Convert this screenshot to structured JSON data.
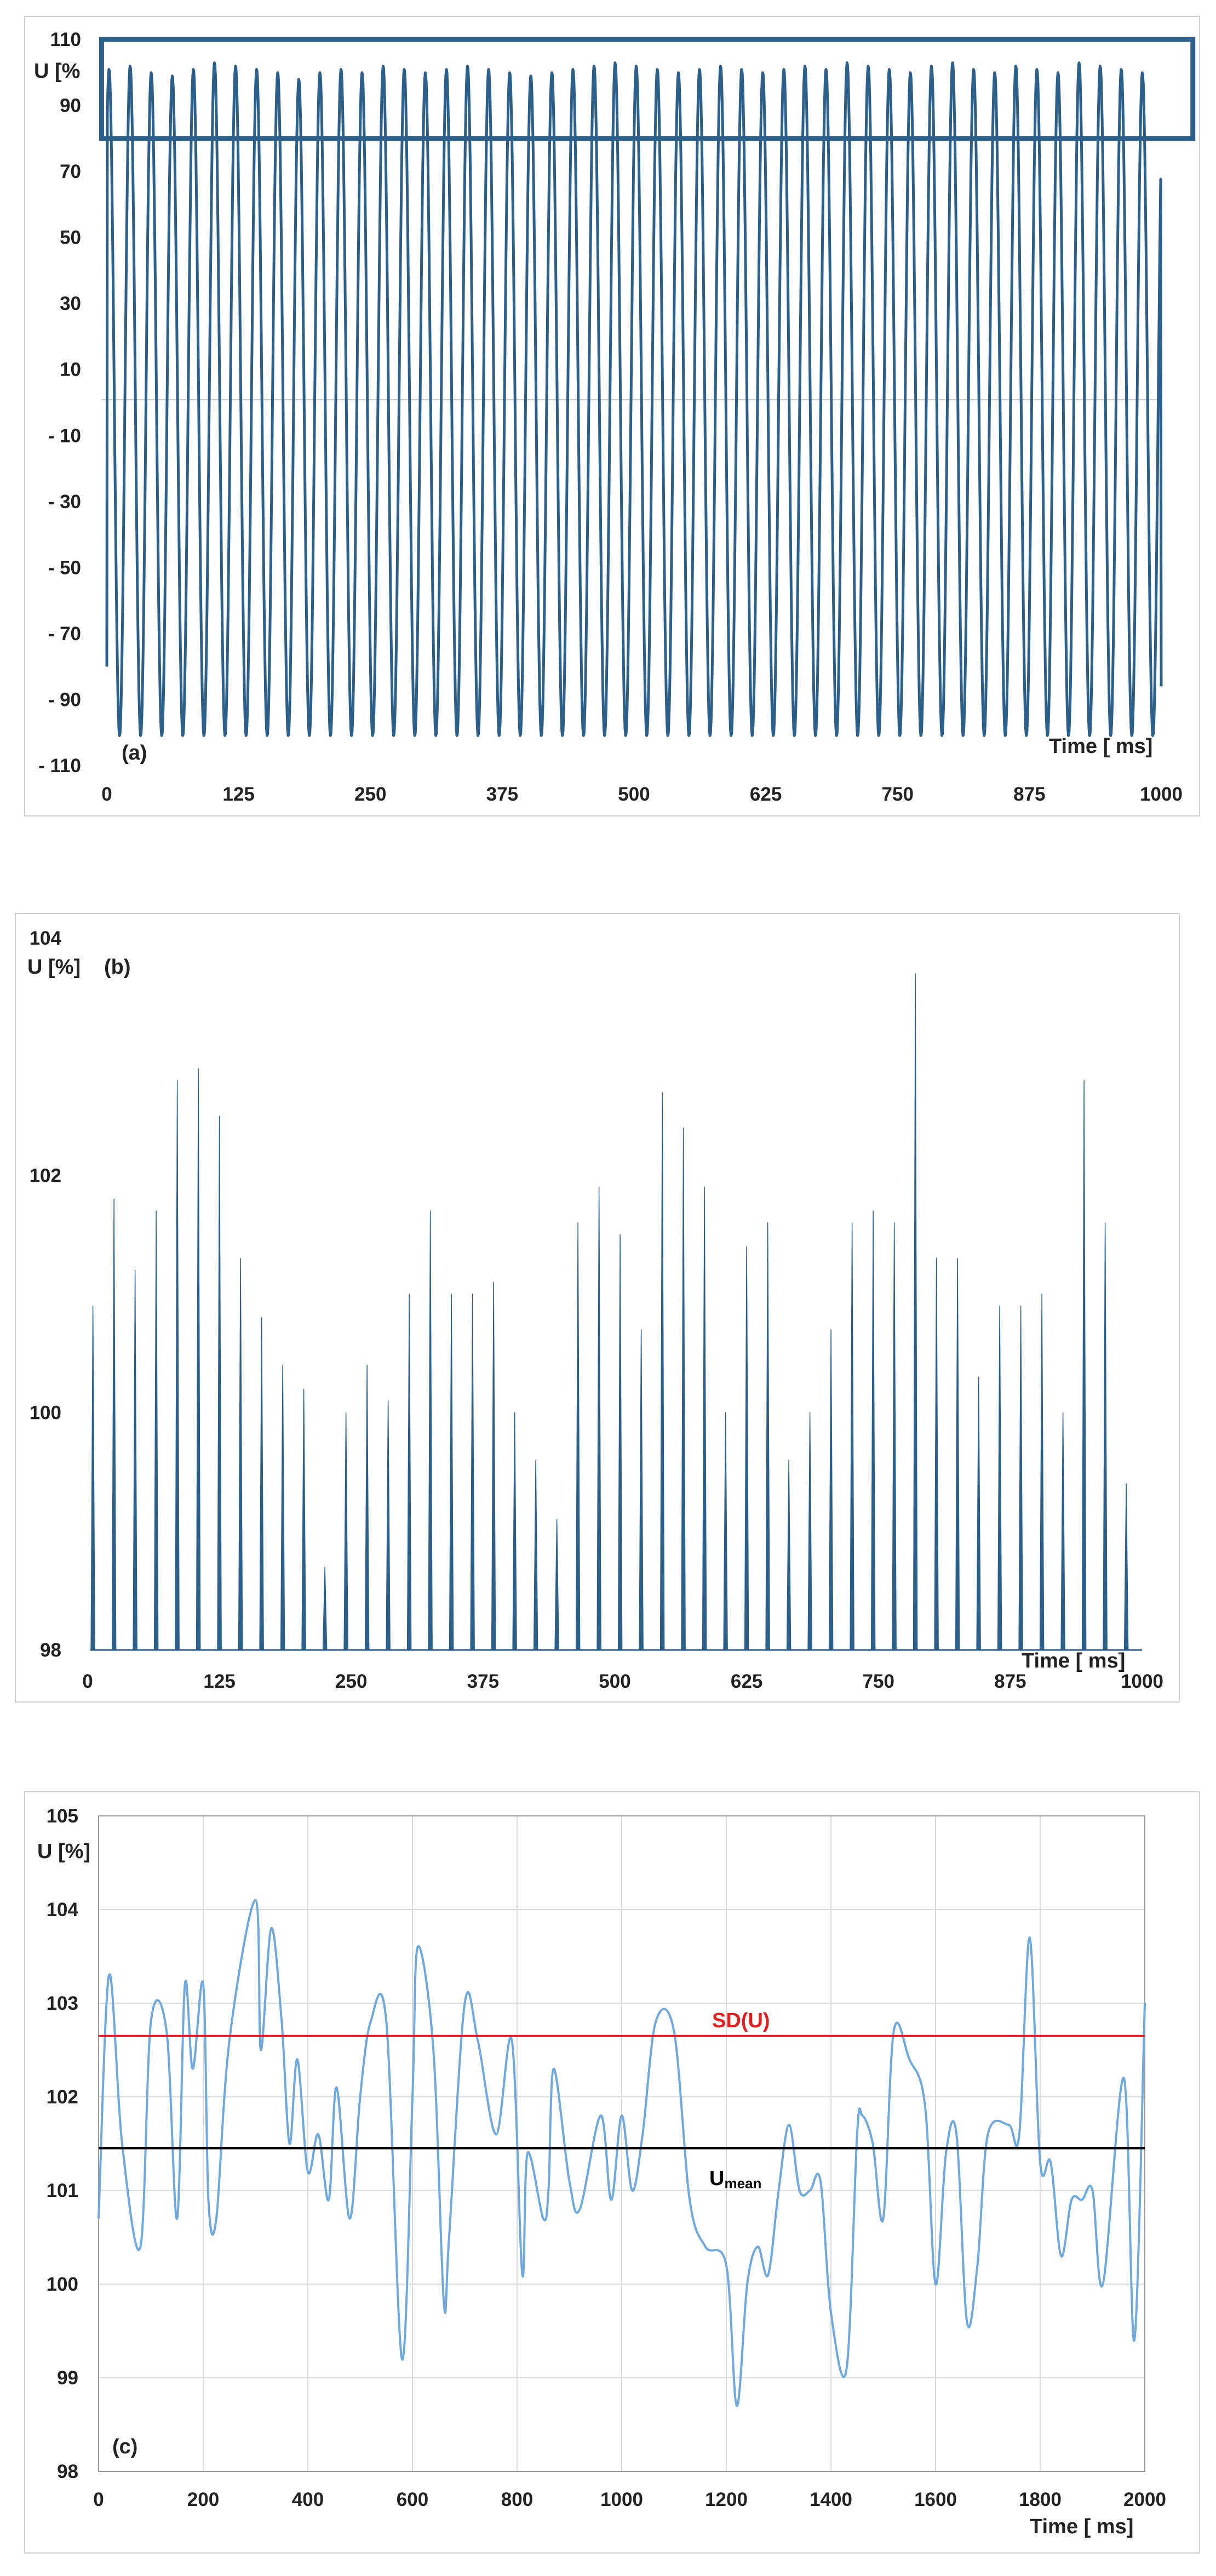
{
  "colors": {
    "signal": "#2c5f8a",
    "smooth": "#6fa8dc",
    "sd_line": "#e02020",
    "mean_line": "#000000",
    "grid": "#d9d9d9",
    "frame": "#d0d0d0",
    "highlight": "#2c5f8a",
    "zero_line": "#c8ccd4"
  },
  "chart_data": [
    {
      "type": "line",
      "panel_label": "(a)",
      "xlabel": "Time [ ms]",
      "ylabel": "U [%",
      "xlim": [
        0,
        1000
      ],
      "ylim": [
        -110,
        110
      ],
      "x_ticks": [
        "0",
        "125",
        "250",
        "375",
        "500",
        "625",
        "750",
        "875",
        "1000"
      ],
      "y_ticks": [
        "110",
        "90",
        "70",
        "50",
        "30",
        "10",
        "- 10",
        "- 30",
        "- 50",
        "- 70",
        "- 90",
        "- 110"
      ],
      "grid": false,
      "signal": {
        "frequency_hz": 50,
        "amplitude_peaks": [
          101,
          102,
          100,
          99,
          101,
          103,
          102,
          101,
          100,
          98,
          100,
          101,
          100,
          102,
          101,
          100,
          101,
          102,
          101,
          100,
          99,
          100,
          101,
          102,
          103,
          102,
          101,
          100,
          101,
          102,
          101,
          100,
          101,
          102,
          101,
          103,
          102,
          101,
          100,
          102,
          103,
          101,
          100,
          102,
          101,
          100,
          103,
          102,
          101,
          100
        ],
        "trough_depth": -101,
        "start_value": -80,
        "end_value": -86
      },
      "highlight_box": {
        "y_from": 80,
        "y_to": 110,
        "x_from": -5,
        "x_to": 1030
      }
    },
    {
      "type": "bar",
      "panel_label": "(b)",
      "xlabel": "Time [ ms]",
      "ylabel": "U [%]",
      "xlim": [
        0,
        1000
      ],
      "ylim": [
        98,
        104
      ],
      "x_ticks": [
        "0",
        "125",
        "250",
        "375",
        "500",
        "625",
        "750",
        "875",
        "1000"
      ],
      "y_ticks": [
        "104",
        "102",
        "100",
        "98"
      ],
      "grid": false,
      "peak_times": [
        5,
        25,
        45,
        65,
        85,
        105,
        125,
        145,
        165,
        185,
        205,
        225,
        245,
        265,
        285,
        305,
        325,
        345,
        365,
        385,
        405,
        425,
        445,
        465,
        485,
        505,
        525,
        545,
        565,
        585,
        605,
        625,
        645,
        665,
        685,
        705,
        725,
        745,
        765,
        785,
        805,
        825,
        845,
        865,
        885,
        905,
        925,
        945,
        965,
        985
      ],
      "peak_values": [
        100.9,
        101.8,
        101.2,
        101.7,
        102.8,
        102.9,
        102.5,
        101.3,
        100.8,
        100.4,
        100.2,
        98.7,
        100.0,
        100.4,
        100.1,
        101.0,
        101.7,
        101.0,
        101.0,
        101.1,
        100.0,
        99.6,
        99.1,
        101.6,
        101.9,
        101.5,
        100.7,
        102.7,
        102.4,
        101.9,
        100.0,
        101.4,
        101.6,
        99.6,
        100.0,
        100.7,
        101.6,
        101.7,
        101.6,
        103.7,
        101.3,
        101.3,
        100.3,
        100.9,
        100.9,
        101.0,
        100.0,
        102.8,
        101.6,
        99.4
      ]
    },
    {
      "type": "line",
      "panel_label": "(c)",
      "xlabel": "Time [ ms]",
      "ylabel": "U [%]",
      "xlim": [
        0,
        2000
      ],
      "ylim": [
        98,
        105
      ],
      "x_ticks": [
        "0",
        "200",
        "400",
        "600",
        "800",
        "1000",
        "1200",
        "1400",
        "1600",
        "1800",
        "2000"
      ],
      "y_ticks": [
        "105",
        "104",
        "103",
        "102",
        "101",
        "100",
        "99",
        "98"
      ],
      "grid": true,
      "series": [
        {
          "name": "U",
          "x": [
            0,
            20,
            45,
            80,
            100,
            130,
            150,
            165,
            180,
            200,
            210,
            225,
            250,
            300,
            310,
            330,
            350,
            365,
            380,
            400,
            420,
            440,
            455,
            480,
            500,
            520,
            550,
            580,
            600,
            610,
            640,
            660,
            670,
            700,
            725,
            760,
            790,
            810,
            820,
            850,
            860,
            870,
            900,
            920,
            960,
            980,
            1000,
            1020,
            1040,
            1065,
            1100,
            1130,
            1160,
            1200,
            1220,
            1240,
            1260,
            1280,
            1300,
            1320,
            1340,
            1360,
            1380,
            1400,
            1430,
            1450,
            1460,
            1480,
            1500,
            1520,
            1550,
            1580,
            1600,
            1620,
            1640,
            1660,
            1680,
            1700,
            1740,
            1760,
            1780,
            1800,
            1820,
            1840,
            1860,
            1880,
            1900,
            1920,
            1960,
            1980,
            2000
          ],
          "y": [
            100.7,
            103.3,
            101.5,
            100.4,
            102.8,
            102.7,
            100.7,
            103.2,
            102.3,
            103.2,
            100.9,
            100.7,
            102.6,
            104.1,
            102.5,
            103.8,
            102.8,
            101.5,
            102.4,
            101.2,
            101.6,
            100.9,
            102.1,
            100.7,
            102.0,
            102.8,
            102.8,
            99.2,
            102.0,
            103.6,
            102.5,
            99.8,
            100.5,
            103.0,
            102.6,
            101.6,
            102.6,
            100.1,
            101.4,
            100.7,
            101.0,
            102.3,
            101.1,
            100.8,
            101.8,
            100.9,
            101.8,
            101.0,
            101.6,
            102.8,
            102.7,
            100.9,
            100.4,
            100.2,
            98.7,
            100.0,
            100.4,
            100.1,
            101.0,
            101.7,
            101.0,
            101.0,
            101.1,
            99.7,
            99.1,
            101.6,
            101.8,
            101.5,
            100.7,
            102.7,
            102.4,
            101.9,
            100.0,
            101.4,
            101.6,
            99.6,
            100.2,
            101.6,
            101.7,
            101.6,
            103.7,
            101.3,
            101.3,
            100.3,
            100.9,
            100.9,
            101.0,
            100.0,
            102.2,
            99.4,
            103.0
          ]
        }
      ],
      "hlines": [
        {
          "name": "SD(U)",
          "value": 102.65
        },
        {
          "name": "U",
          "subscript": "mean",
          "value": 101.45
        }
      ]
    }
  ]
}
